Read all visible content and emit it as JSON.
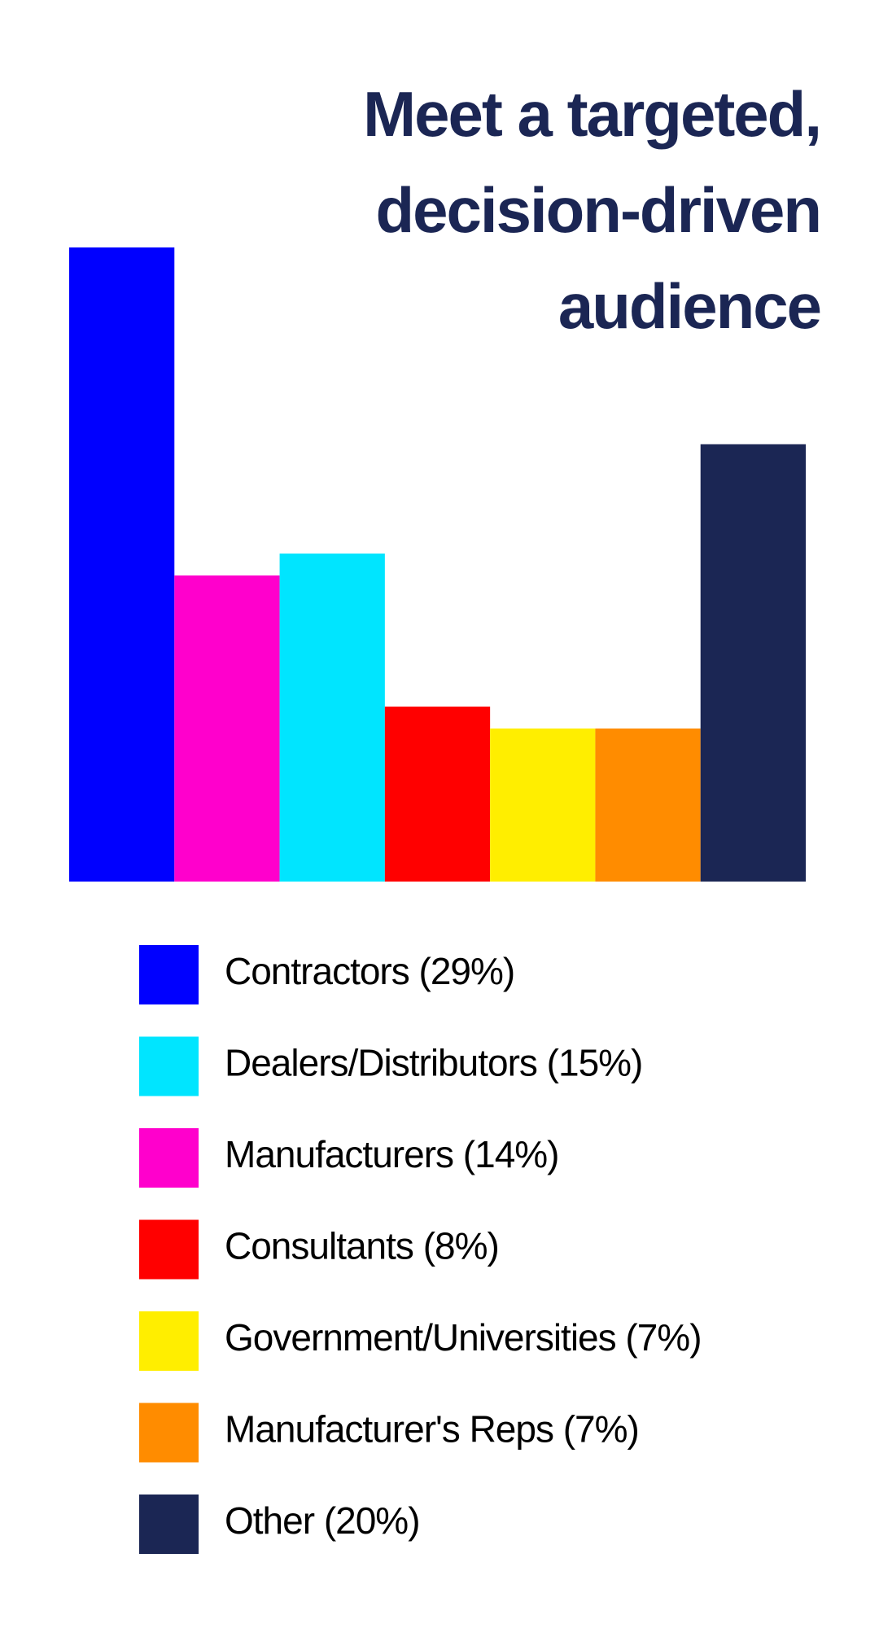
{
  "chart_data": {
    "type": "bar",
    "title": [
      "Meet a targeted,",
      "decision-driven",
      "audience"
    ],
    "values": [
      29,
      14,
      15,
      8,
      7,
      7,
      20
    ],
    "colors": [
      "#0000ff",
      "#ff00cc",
      "#00e5ff",
      "#ff0000",
      "#ffee00",
      "#ff8c00",
      "#1b2654"
    ],
    "ylim": [
      0,
      29
    ],
    "legend": [
      {
        "label": "Contractors (29%)",
        "color": "#0000ff"
      },
      {
        "label": "Dealers/Distributors (15%)",
        "color": "#00e5ff"
      },
      {
        "label": "Manufacturers (14%)",
        "color": "#ff00cc"
      },
      {
        "label": "Consultants (8%)",
        "color": "#ff0000"
      },
      {
        "label": "Government/Universities (7%)",
        "color": "#ffee00"
      },
      {
        "label": "Manufacturer's Reps (7%)",
        "color": "#ff8c00"
      },
      {
        "label": "Other (20%)",
        "color": "#1b2654"
      }
    ]
  }
}
